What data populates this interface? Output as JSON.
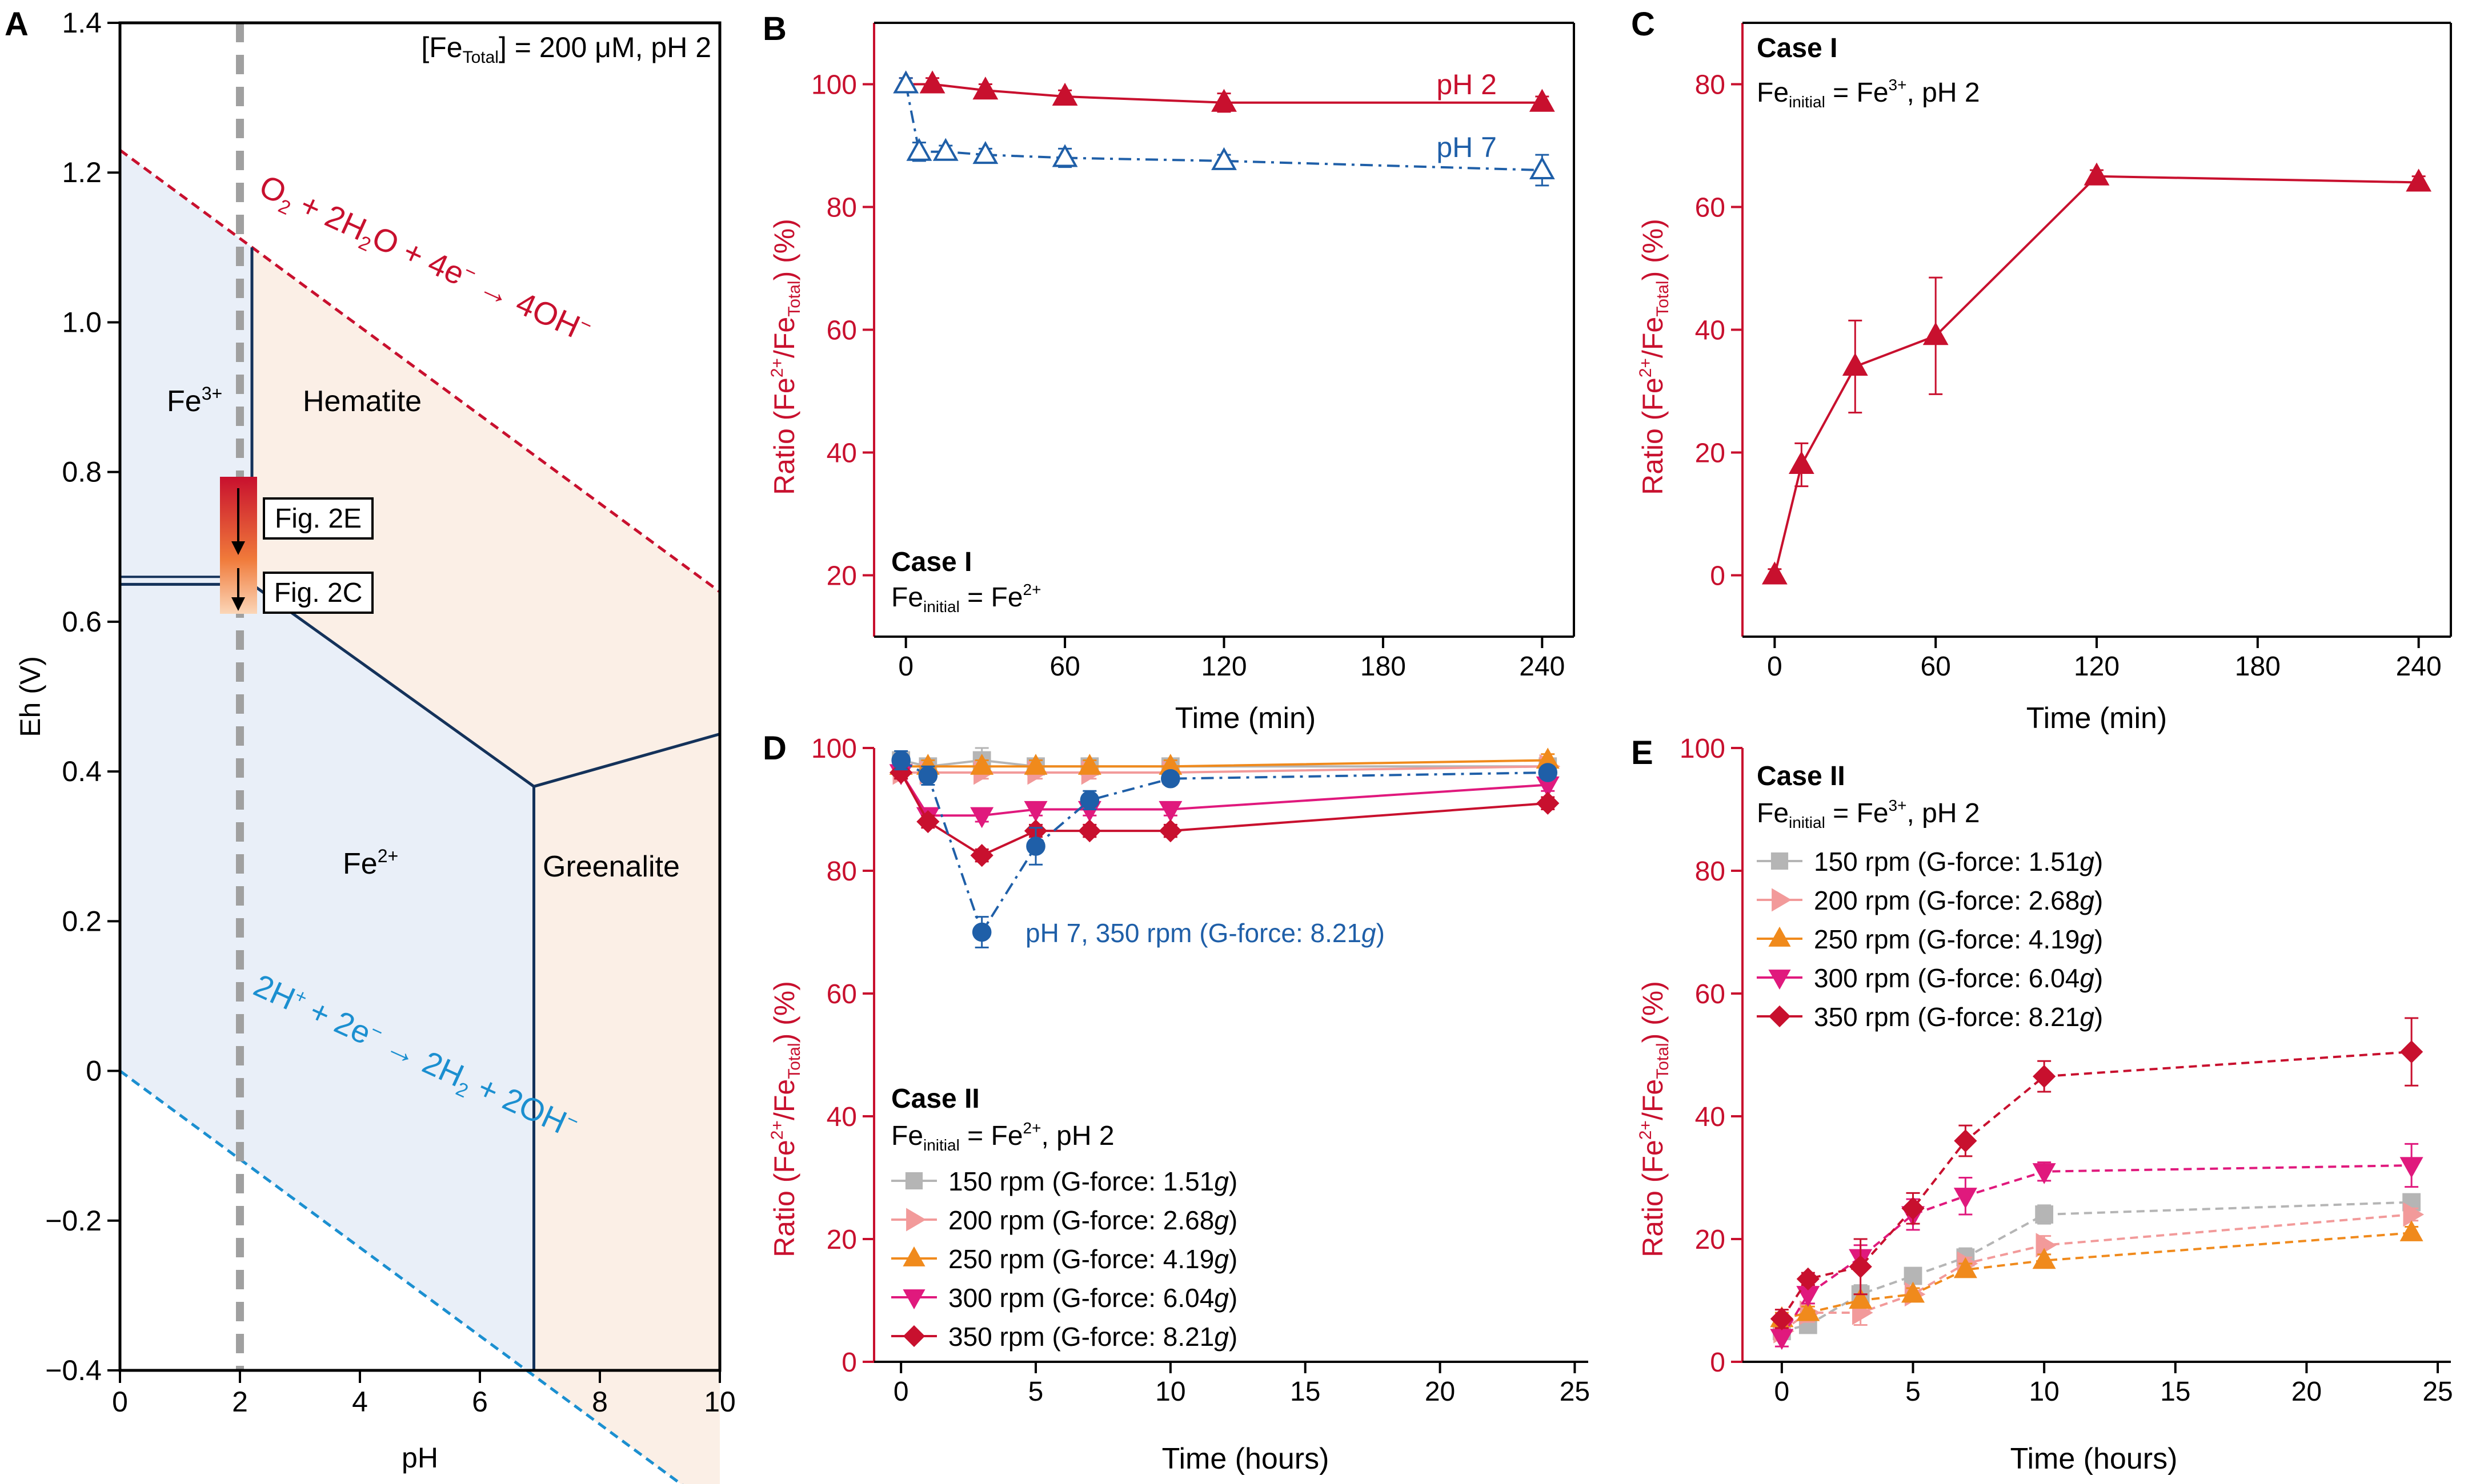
{
  "colors": {
    "red": "#c8102e",
    "blue": "#1f5fa8",
    "cyan": "#1b8fd0",
    "navy": "#14325a",
    "grey": "#a0a0a0",
    "hem": "#fbefe6",
    "fe": "#e9eff8"
  },
  "panels": {
    "A": {
      "letter": "A",
      "condition": "[Fe_Total] = 200 μM, pH 2",
      "xlabel": "pH",
      "ylabel": "Eh (V)",
      "xticks": [
        "0",
        "2",
        "4",
        "6",
        "8",
        "10"
      ],
      "yticks": [
        "-0.4",
        "-0.2",
        "0",
        "0.2",
        "0.4",
        "0.6",
        "0.8",
        "1.0",
        "1.2",
        "1.4"
      ],
      "regions": {
        "fe3": "Fe3+",
        "hem": "Hematite",
        "fe2": "Fe2+",
        "green": "Greenalite"
      },
      "o2_line": "O2 + 2H2O + 4e- → 4OH-",
      "h2_line": "2H+ + 2e- → 2H2 + 2OH-",
      "box1": "Fig. 2E",
      "box2": "Fig. 2C"
    },
    "B": {
      "letter": "B",
      "xlabel": "Time (min)",
      "ylabel": "Ratio (Fe2+/FeTotal) (%)",
      "xticks": [
        "0",
        "60",
        "120",
        "180",
        "240"
      ],
      "yticks": [
        "20",
        "40",
        "60",
        "80",
        "100"
      ],
      "case": "Case I",
      "fe_init": "Fe_initial = Fe2+",
      "series_labels": [
        "pH 2",
        "pH 7"
      ]
    },
    "C": {
      "letter": "C",
      "xlabel": "Time (min)",
      "ylabel": "Ratio (Fe2+/FeTotal) (%)",
      "xticks": [
        "0",
        "60",
        "120",
        "180",
        "240"
      ],
      "yticks": [
        "0",
        "20",
        "40",
        "60",
        "80"
      ],
      "case": "Case I",
      "fe_init": "Fe_initial = Fe3+, pH 2"
    },
    "D": {
      "letter": "D",
      "xlabel": "Time (hours)",
      "ylabel": "Ratio (Fe2+/FeTotal) (%)",
      "xticks": [
        "0",
        "5",
        "10",
        "15",
        "20",
        "25"
      ],
      "yticks": [
        "0",
        "20",
        "40",
        "60",
        "80",
        "100"
      ],
      "case": "Case II",
      "fe_init": "Fe_initial = Fe2+, pH 2",
      "annotation": "pH 7, 350 rpm (G-force: 8.21g)"
    },
    "E": {
      "letter": "E",
      "xlabel": "Time (hours)",
      "ylabel": "Ratio (Fe2+/FeTotal) (%)",
      "xticks": [
        "0",
        "5",
        "10",
        "15",
        "20",
        "25"
      ],
      "yticks": [
        "0",
        "20",
        "40",
        "60",
        "80",
        "100"
      ],
      "case": "Case II",
      "fe_init": "Fe_initial = Fe3+, pH 2"
    }
  },
  "legend": [
    "150 rpm (G-force: 1.51g)",
    "200 rpm (G-force: 2.68g)",
    "250 rpm (G-force: 4.19g)",
    "300 rpm (G-force: 6.04g)",
    "350 rpm (G-force: 8.21g)"
  ],
  "chart_data": [
    {
      "panel": "A",
      "type": "line",
      "xlabel": "pH",
      "ylabel": "Eh (V)",
      "xlim": [
        0,
        10
      ],
      "ylim": [
        -0.4,
        1.4
      ],
      "boundaries": [
        {
          "name": "O2/OH- line",
          "x": [
            0,
            10
          ],
          "y": [
            1.23,
            0.64
          ]
        },
        {
          "name": "H+/H2 line",
          "x": [
            0,
            10
          ],
          "y": [
            0.0,
            -0.59
          ]
        },
        {
          "name": "Fe3+/Fe2+",
          "x": [
            0,
            2.2
          ],
          "y": [
            0.65,
            0.65
          ]
        },
        {
          "name": "Fe3+/Hematite",
          "x": [
            2.2,
            2.2
          ],
          "y": [
            0.65,
            1.1
          ]
        },
        {
          "name": "Hematite/Fe2+",
          "x": [
            2.2,
            6.9,
            10
          ],
          "y": [
            0.65,
            0.38,
            0.45
          ]
        },
        {
          "name": "Fe2+/Greenalite",
          "x": [
            6.9,
            6.9
          ],
          "y": [
            0.38,
            -0.4
          ]
        }
      ],
      "marker_pH": 2
    },
    {
      "panel": "B",
      "type": "line",
      "xlabel": "Time (min)",
      "ylabel": "Ratio (Fe2+/FeTotal) (%)",
      "xlim": [
        -12,
        252
      ],
      "ylim": [
        10,
        110
      ],
      "series": [
        {
          "name": "pH 2",
          "x": [
            0,
            10,
            30,
            60,
            120,
            240
          ],
          "y": [
            100,
            100,
            99,
            98,
            97,
            97
          ],
          "err": [
            1,
            1,
            1,
            1,
            1.5,
            1
          ]
        },
        {
          "name": "pH 7",
          "x": [
            0,
            5,
            15,
            30,
            60,
            120,
            240
          ],
          "y": [
            100,
            89,
            89,
            88.5,
            88,
            87.5,
            86
          ],
          "err": [
            1,
            1.5,
            1,
            1,
            1.5,
            1,
            2.5
          ]
        }
      ]
    },
    {
      "panel": "C",
      "type": "line",
      "xlabel": "Time (min)",
      "ylabel": "Ratio (Fe2+/FeTotal) (%)",
      "xlim": [
        -12,
        252
      ],
      "ylim": [
        -10,
        90
      ],
      "series": [
        {
          "name": "",
          "x": [
            0,
            10,
            30,
            60,
            120,
            240
          ],
          "y": [
            0,
            18,
            34,
            39,
            65,
            64
          ],
          "err": [
            1,
            3.5,
            7.5,
            9.5,
            1,
            1
          ]
        }
      ]
    },
    {
      "panel": "D",
      "type": "line",
      "xlabel": "Time (hours)",
      "ylabel": "Ratio (Fe2+/FeTotal) (%)",
      "xlim": [
        -1,
        25.5
      ],
      "ylim": [
        0,
        100
      ],
      "series": [
        {
          "name": "150 rpm (G-force: 1.51g)",
          "x": [
            0,
            1,
            3,
            5,
            7,
            10,
            24
          ],
          "y": [
            98,
            97,
            98,
            97,
            97,
            97,
            97
          ],
          "err": [
            1,
            1,
            2,
            1,
            1,
            1,
            1
          ]
        },
        {
          "name": "200 rpm (G-force: 2.68g)",
          "x": [
            0,
            1,
            3,
            5,
            7,
            10,
            24
          ],
          "y": [
            96,
            96,
            96,
            96,
            96,
            96,
            97
          ],
          "err": [
            1,
            1,
            1,
            1,
            1,
            1,
            1
          ]
        },
        {
          "name": "250 rpm (G-force: 4.19g)",
          "x": [
            0,
            1,
            3,
            5,
            7,
            10,
            24
          ],
          "y": [
            97,
            97,
            97,
            97,
            97,
            97,
            98
          ],
          "err": [
            1,
            1,
            1,
            1,
            1,
            1,
            1
          ]
        },
        {
          "name": "300 rpm (G-force: 6.04g)",
          "x": [
            0,
            1,
            3,
            5,
            7,
            10,
            24
          ],
          "y": [
            96,
            89,
            89,
            90,
            90,
            90,
            94
          ],
          "err": [
            1,
            1,
            1,
            1,
            1,
            1,
            1
          ]
        },
        {
          "name": "350 rpm (G-force: 8.21g)",
          "x": [
            0,
            1,
            3,
            5,
            7,
            10,
            24
          ],
          "y": [
            96,
            88,
            82.5,
            86.5,
            86.5,
            86.5,
            91
          ],
          "err": [
            1,
            1,
            1,
            1,
            1,
            1,
            1
          ]
        },
        {
          "name": "pH 7, 350 rpm (G-force: 8.21g)",
          "x": [
            0,
            1,
            3,
            5,
            7,
            10,
            24
          ],
          "y": [
            98,
            95.5,
            70,
            84,
            91.5,
            95,
            96
          ],
          "err": [
            1.5,
            1.5,
            2.5,
            3,
            1.5,
            1,
            1
          ]
        }
      ]
    },
    {
      "panel": "E",
      "type": "line",
      "xlabel": "Time (hours)",
      "ylabel": "Ratio (Fe2+/FeTotal) (%)",
      "xlim": [
        -1.5,
        25.5
      ],
      "ylim": [
        0,
        100
      ],
      "series": [
        {
          "name": "150 rpm (G-force: 1.51g)",
          "x": [
            0,
            1,
            3,
            5,
            7,
            10,
            24
          ],
          "y": [
            5,
            6,
            11,
            14,
            17,
            24,
            26
          ],
          "err": [
            1,
            1,
            1.5,
            1,
            1.5,
            1.5,
            1
          ]
        },
        {
          "name": "200 rpm (G-force: 2.68g)",
          "x": [
            0,
            1,
            3,
            5,
            7,
            10,
            24
          ],
          "y": [
            5,
            8,
            8,
            11,
            16,
            19,
            24
          ],
          "err": [
            1,
            1.5,
            2,
            1,
            1,
            1.5,
            1
          ]
        },
        {
          "name": "250 rpm (G-force: 4.19g)",
          "x": [
            0,
            1,
            3,
            5,
            7,
            10,
            24
          ],
          "y": [
            7,
            8,
            10,
            11,
            15,
            16.5,
            21
          ],
          "err": [
            1,
            1,
            1,
            1,
            1,
            1,
            1
          ]
        },
        {
          "name": "300 rpm (G-force: 6.04g)",
          "x": [
            0,
            1,
            3,
            5,
            7,
            10,
            24
          ],
          "y": [
            4,
            11,
            17,
            24,
            27,
            31,
            32
          ],
          "err": [
            1.5,
            1.5,
            2,
            2.5,
            3,
            1.5,
            3.5
          ]
        },
        {
          "name": "350 rpm (G-force: 8.21g)",
          "x": [
            0,
            1,
            3,
            5,
            7,
            10,
            24
          ],
          "y": [
            7,
            13.5,
            15.5,
            25,
            36,
            46.5,
            50.5
          ],
          "err": [
            1.5,
            1,
            4.5,
            2.5,
            2.5,
            2.5,
            5.5
          ]
        }
      ]
    }
  ]
}
